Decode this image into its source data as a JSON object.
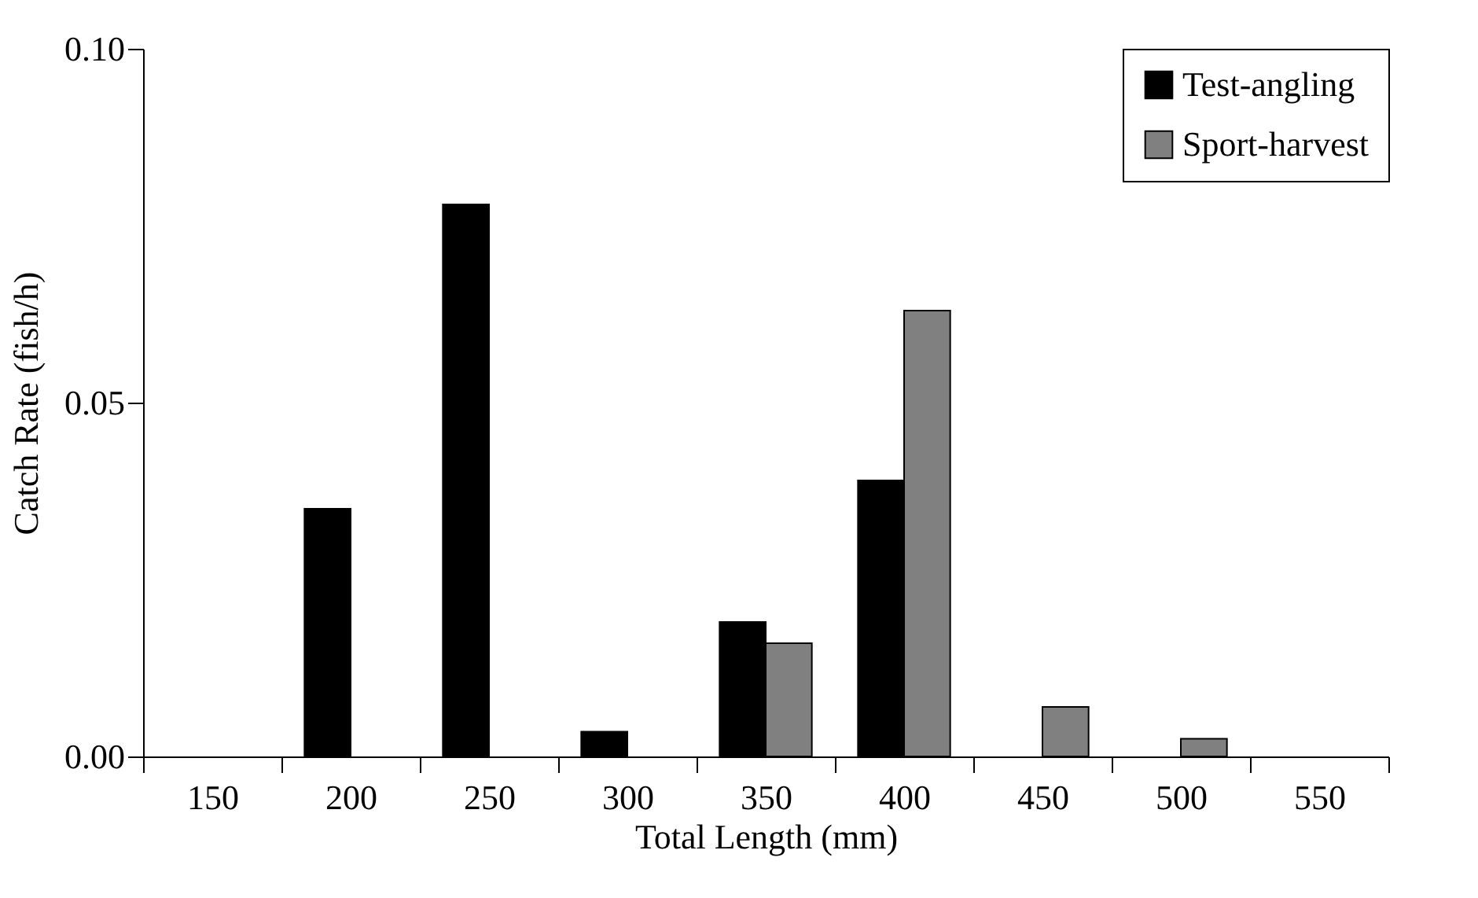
{
  "chart_data": {
    "type": "bar",
    "xlabel": "Total Length (mm)",
    "ylabel": "Catch Rate (fish/h)",
    "categories": [
      "150",
      "200",
      "250",
      "300",
      "350",
      "400",
      "450",
      "500",
      "550"
    ],
    "series": [
      {
        "name": "Test-angling",
        "color": "#000000",
        "values": [
          null,
          0.035,
          0.078,
          0.0035,
          0.019,
          0.039,
          null,
          null,
          null
        ]
      },
      {
        "name": "Sport-harvest",
        "color": "#808080",
        "values": [
          null,
          null,
          null,
          null,
          0.016,
          0.063,
          0.007,
          0.0025,
          null
        ]
      }
    ],
    "ylim": [
      0,
      0.1
    ],
    "yticks": [
      {
        "value": 0,
        "label": "0.00"
      },
      {
        "value": 0.05,
        "label": "0.05"
      },
      {
        "value": 0.1,
        "label": "0.10"
      }
    ],
    "grid": false,
    "legend": "top right"
  }
}
